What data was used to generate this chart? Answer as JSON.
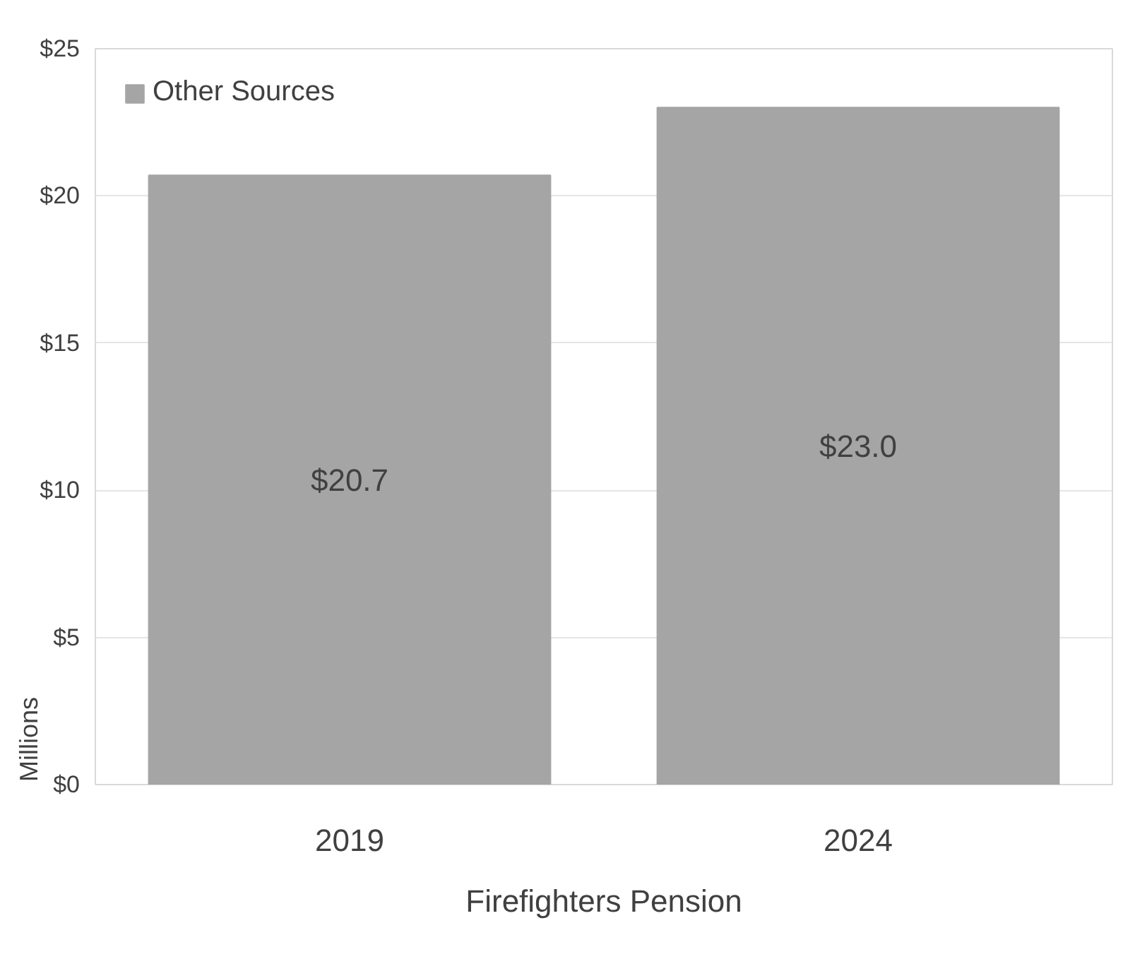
{
  "chart_data": {
    "type": "bar",
    "xlabel": "Firefighters Pension",
    "ylabel": "Millions",
    "categories": [
      "2019",
      "2024"
    ],
    "series": [
      {
        "name": "Other Sources",
        "color": "#a5a5a5",
        "values": [
          20.7,
          23.0
        ],
        "value_labels": [
          "$20.7",
          "$23.0"
        ]
      }
    ],
    "ylim": [
      0,
      25
    ],
    "yticks": [
      {
        "value": 0,
        "label": "$0"
      },
      {
        "value": 5,
        "label": "$5"
      },
      {
        "value": 10,
        "label": "$10"
      },
      {
        "value": 15,
        "label": "$15"
      },
      {
        "value": 20,
        "label": "$20"
      },
      {
        "value": 25,
        "label": "$25"
      }
    ],
    "grid": "y",
    "legend": "top left"
  }
}
